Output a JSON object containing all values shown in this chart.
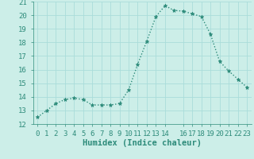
{
  "title": "",
  "xlabel": "Humidex (Indice chaleur)",
  "ylabel": "",
  "x": [
    0,
    1,
    2,
    3,
    4,
    5,
    6,
    7,
    8,
    9,
    10,
    11,
    12,
    13,
    14,
    15,
    16,
    17,
    18,
    19,
    20,
    21,
    22,
    23
  ],
  "y": [
    12.5,
    13.0,
    13.5,
    13.8,
    13.9,
    13.8,
    13.4,
    13.4,
    13.4,
    13.5,
    14.5,
    16.4,
    18.1,
    19.9,
    20.7,
    20.35,
    20.3,
    20.1,
    19.9,
    18.6,
    16.6,
    15.9,
    15.3,
    14.7
  ],
  "line_color": "#2d8b7a",
  "marker": "*",
  "marker_color": "#2d8b7a",
  "bg_color": "#cceee8",
  "grid_color": "#aaddda",
  "tick_color": "#2d8b7a",
  "ylim": [
    12,
    21
  ],
  "yticks": [
    12,
    13,
    14,
    15,
    16,
    17,
    18,
    19,
    20,
    21
  ],
  "xticks": [
    0,
    1,
    2,
    3,
    4,
    5,
    6,
    7,
    8,
    9,
    10,
    11,
    12,
    13,
    14,
    16,
    17,
    18,
    19,
    20,
    21,
    22,
    23
  ],
  "xtick_labels": [
    "0",
    "1",
    "2",
    "3",
    "4",
    "5",
    "6",
    "7",
    "8",
    "9",
    "10",
    "11",
    "12",
    "13",
    "14",
    "16",
    "17",
    "18",
    "19",
    "20",
    "21",
    "22",
    "23"
  ],
  "xlabel_fontsize": 7.5,
  "tick_fontsize": 6.5,
  "linewidth": 1.0,
  "markersize": 3.5
}
